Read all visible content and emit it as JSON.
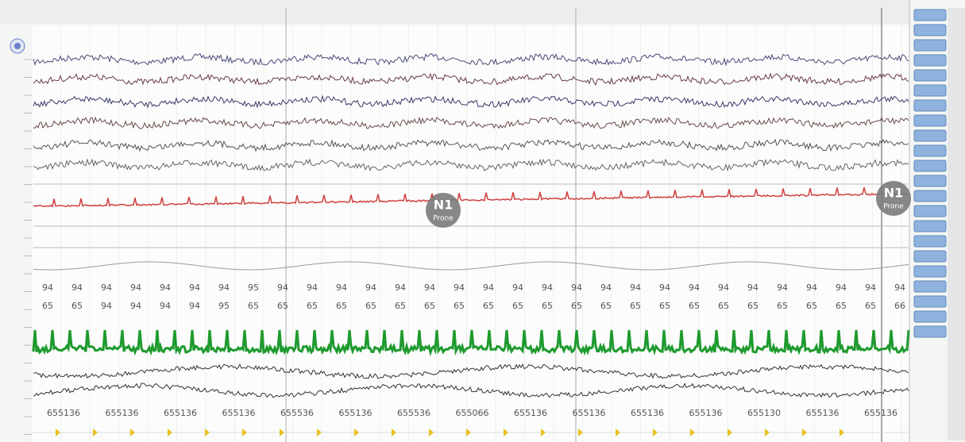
{
  "stage_markers": [
    {
      "stage": "N1",
      "position": "Prone"
    },
    {
      "stage": "N1",
      "position": "Prone"
    }
  ],
  "spo2_row": [
    "94",
    "94",
    "94",
    "94",
    "94",
    "94",
    "94",
    "95",
    "94",
    "94",
    "94",
    "94",
    "94",
    "94",
    "94",
    "94",
    "94",
    "94",
    "94",
    "94",
    "94",
    "94",
    "94",
    "94",
    "94",
    "94",
    "94",
    "94",
    "94",
    "94"
  ],
  "pulse_row": [
    "65",
    "65",
    "94",
    "94",
    "94",
    "94",
    "95",
    "65",
    "65",
    "65",
    "65",
    "65",
    "65",
    "65",
    "65",
    "65",
    "65",
    "65",
    "65",
    "65",
    "65",
    "65",
    "65",
    "65",
    "65",
    "65",
    "65",
    "65",
    "65",
    "66"
  ],
  "counter_row": [
    "655136",
    "655136",
    "655136",
    "655136",
    "655536",
    "655136",
    "655536",
    "655066",
    "655136",
    "655136",
    "655136",
    "655136",
    "655130",
    "655136",
    "655136"
  ]
}
